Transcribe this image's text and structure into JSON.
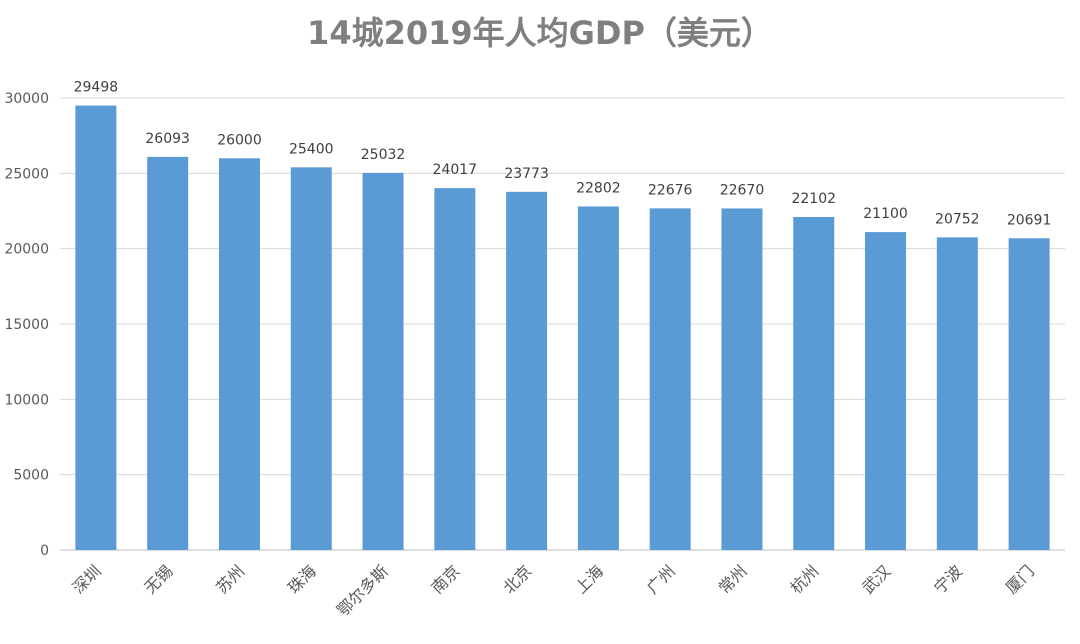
{
  "chart_data": {
    "type": "bar",
    "title": "14城2019年人均GDP（美元）",
    "xlabel": "",
    "ylabel": "",
    "categories": [
      "深圳",
      "无锡",
      "苏州",
      "珠海",
      "鄂尔多斯",
      "南京",
      "北京",
      "上海",
      "广州",
      "常州",
      "杭州",
      "武汉",
      "宁波",
      "厦门"
    ],
    "values": [
      29498,
      26093,
      26000,
      25400,
      25032,
      24017,
      23773,
      22802,
      22676,
      22670,
      22102,
      21100,
      20752,
      20691
    ],
    "ylim": [
      0,
      30000
    ],
    "yticks": [
      0,
      5000,
      10000,
      15000,
      20000,
      25000,
      30000
    ],
    "grid": true,
    "legend": "none",
    "bar_color": "#5b9bd5"
  }
}
